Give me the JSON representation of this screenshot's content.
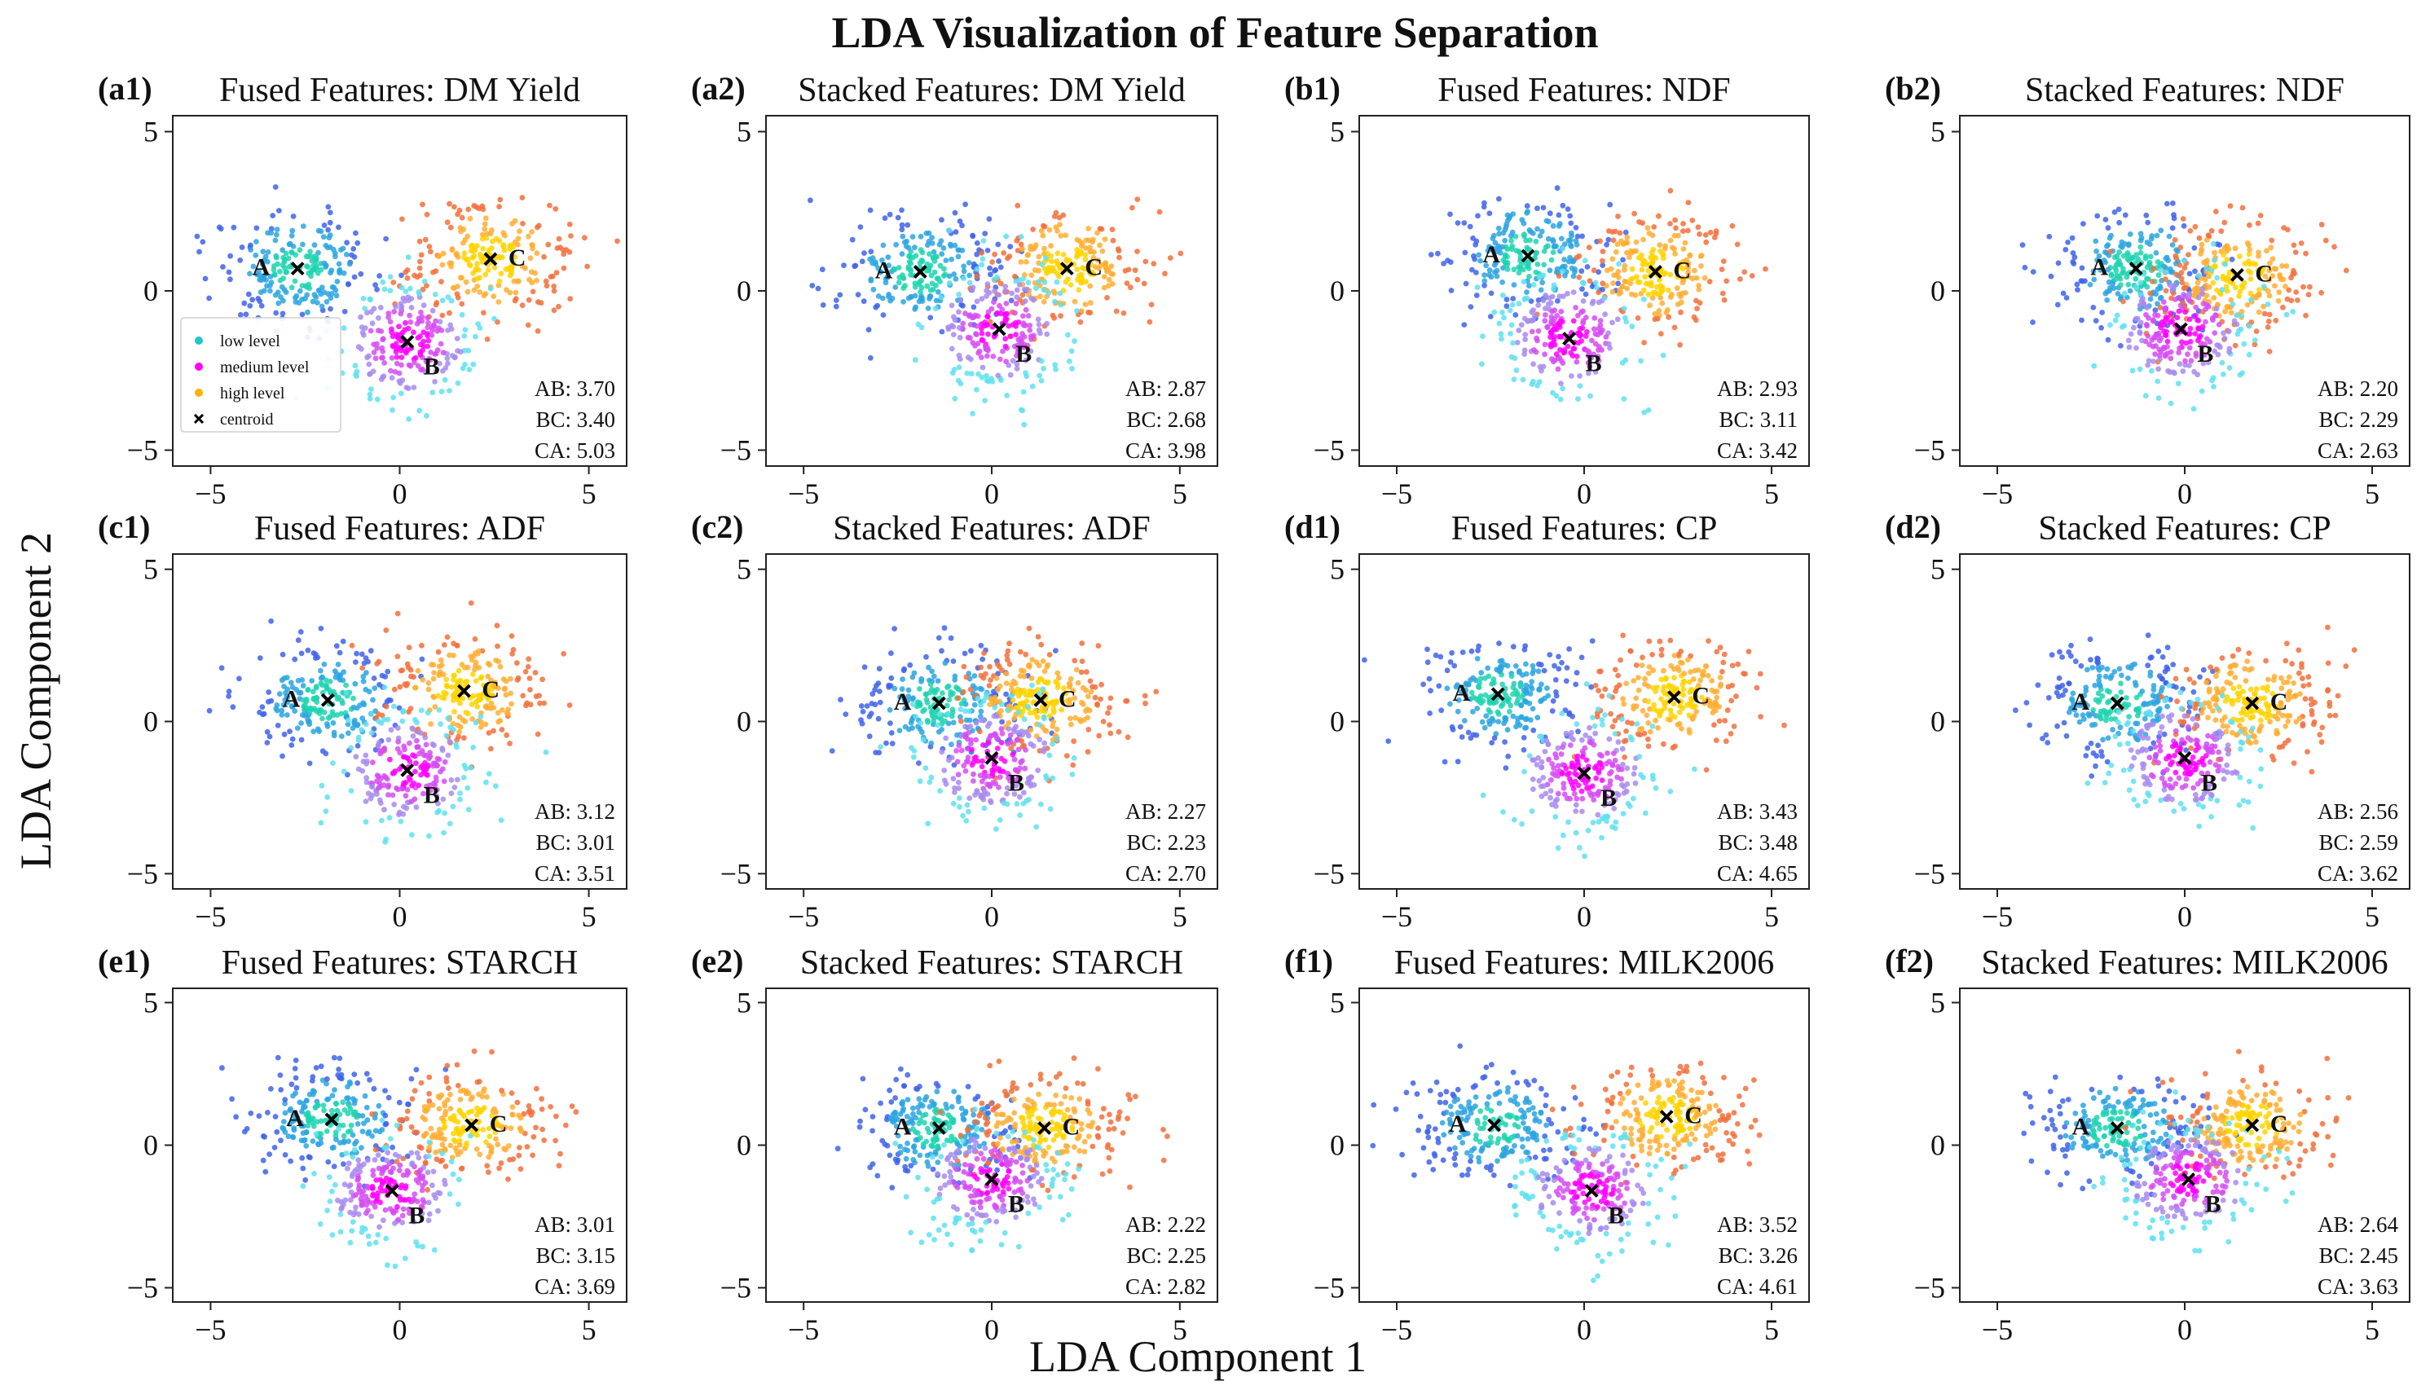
{
  "figure": {
    "title": "LDA Visualization of Feature Separation",
    "xlabel": "LDA Component 1",
    "ylabel": "LDA Component 2"
  },
  "legend": {
    "items": [
      {
        "label": "low level",
        "color": "#1fc8c8",
        "marker": "dot"
      },
      {
        "label": "medium level",
        "color": "#ff00ff",
        "marker": "dot"
      },
      {
        "label": "high level",
        "color": "#ffb000",
        "marker": "dot"
      },
      {
        "label": "centroid",
        "color": "#000000",
        "marker": "x"
      }
    ]
  },
  "chart_data": [
    {
      "type": "scatter",
      "label": "(a1)",
      "title": "Fused Features: DM Yield",
      "xlim": [
        -6,
        6
      ],
      "ylim": [
        -5.5,
        5.5
      ],
      "xticks": [
        -5,
        0,
        5
      ],
      "yticks": [
        5,
        0,
        -5
      ],
      "centroids": {
        "A": [
          -2.7,
          0.7
        ],
        "B": [
          0.2,
          -1.6
        ],
        "C": [
          2.4,
          1.0
        ]
      },
      "distances": {
        "AB": "3.70",
        "BC": "3.40",
        "CA": "5.03"
      },
      "legend": true
    },
    {
      "type": "scatter",
      "label": "(a2)",
      "title": "Stacked Features: DM Yield",
      "xlim": [
        -6,
        6
      ],
      "ylim": [
        -5.5,
        5.5
      ],
      "xticks": [
        -5,
        0,
        5
      ],
      "yticks": [
        5,
        0,
        -5
      ],
      "centroids": {
        "A": [
          -1.9,
          0.6
        ],
        "B": [
          0.2,
          -1.2
        ],
        "C": [
          2.0,
          0.7
        ]
      },
      "distances": {
        "AB": "2.87",
        "BC": "2.68",
        "CA": "3.98"
      }
    },
    {
      "type": "scatter",
      "label": "(b1)",
      "title": "Fused Features: NDF",
      "xlim": [
        -6,
        6
      ],
      "ylim": [
        -5.5,
        5.5
      ],
      "xticks": [
        -5,
        0,
        5
      ],
      "yticks": [
        5,
        0,
        -5
      ],
      "centroids": {
        "A": [
          -1.5,
          1.1
        ],
        "B": [
          -0.4,
          -1.5
        ],
        "C": [
          1.9,
          0.6
        ]
      },
      "distances": {
        "AB": "2.93",
        "BC": "3.11",
        "CA": "3.42"
      }
    },
    {
      "type": "scatter",
      "label": "(b2)",
      "title": "Stacked Features: NDF",
      "xlim": [
        -6,
        6
      ],
      "ylim": [
        -5.5,
        5.5
      ],
      "xticks": [
        -5,
        0,
        5
      ],
      "yticks": [
        5,
        0,
        -5
      ],
      "centroids": {
        "A": [
          -1.3,
          0.7
        ],
        "B": [
          -0.1,
          -1.2
        ],
        "C": [
          1.4,
          0.5
        ]
      },
      "distances": {
        "AB": "2.20",
        "BC": "2.29",
        "CA": "2.63"
      }
    },
    {
      "type": "scatter",
      "label": "(c1)",
      "title": "Fused Features: ADF",
      "xlim": [
        -6,
        6
      ],
      "ylim": [
        -5.5,
        5.5
      ],
      "xticks": [
        -5,
        0,
        5
      ],
      "yticks": [
        5,
        0,
        -5
      ],
      "centroids": {
        "A": [
          -1.9,
          0.7
        ],
        "B": [
          0.2,
          -1.6
        ],
        "C": [
          1.7,
          1.0
        ]
      },
      "distances": {
        "AB": "3.12",
        "BC": "3.01",
        "CA": "3.51"
      }
    },
    {
      "type": "scatter",
      "label": "(c2)",
      "title": "Stacked Features: ADF",
      "xlim": [
        -6,
        6
      ],
      "ylim": [
        -5.5,
        5.5
      ],
      "xticks": [
        -5,
        0,
        5
      ],
      "yticks": [
        5,
        0,
        -5
      ],
      "centroids": {
        "A": [
          -1.4,
          0.6
        ],
        "B": [
          0.0,
          -1.2
        ],
        "C": [
          1.3,
          0.7
        ]
      },
      "distances": {
        "AB": "2.27",
        "BC": "2.23",
        "CA": "2.70"
      }
    },
    {
      "type": "scatter",
      "label": "(d1)",
      "title": "Fused Features: CP",
      "xlim": [
        -6,
        6
      ],
      "ylim": [
        -5.5,
        5.5
      ],
      "xticks": [
        -5,
        0,
        5
      ],
      "yticks": [
        5,
        0,
        -5
      ],
      "centroids": {
        "A": [
          -2.3,
          0.9
        ],
        "B": [
          0.0,
          -1.7
        ],
        "C": [
          2.4,
          0.8
        ]
      },
      "distances": {
        "AB": "3.43",
        "BC": "3.48",
        "CA": "4.65"
      }
    },
    {
      "type": "scatter",
      "label": "(d2)",
      "title": "Stacked Features: CP",
      "xlim": [
        -6,
        6
      ],
      "ylim": [
        -5.5,
        5.5
      ],
      "xticks": [
        -5,
        0,
        5
      ],
      "yticks": [
        5,
        0,
        -5
      ],
      "centroids": {
        "A": [
          -1.8,
          0.6
        ],
        "B": [
          0.0,
          -1.2
        ],
        "C": [
          1.8,
          0.6
        ]
      },
      "distances": {
        "AB": "2.56",
        "BC": "2.59",
        "CA": "3.62"
      }
    },
    {
      "type": "scatter",
      "label": "(e1)",
      "title": "Fused Features: STARCH",
      "xlim": [
        -6,
        6
      ],
      "ylim": [
        -5.5,
        5.5
      ],
      "xticks": [
        -5,
        0,
        5
      ],
      "yticks": [
        5,
        0,
        -5
      ],
      "centroids": {
        "A": [
          -1.8,
          0.9
        ],
        "B": [
          -0.2,
          -1.6
        ],
        "C": [
          1.9,
          0.7
        ]
      },
      "distances": {
        "AB": "3.01",
        "BC": "3.15",
        "CA": "3.69"
      }
    },
    {
      "type": "scatter",
      "label": "(e2)",
      "title": "Stacked Features: STARCH",
      "xlim": [
        -6,
        6
      ],
      "ylim": [
        -5.5,
        5.5
      ],
      "xticks": [
        -5,
        0,
        5
      ],
      "yticks": [
        5,
        0,
        -5
      ],
      "centroids": {
        "A": [
          -1.4,
          0.6
        ],
        "B": [
          0.0,
          -1.2
        ],
        "C": [
          1.4,
          0.6
        ]
      },
      "distances": {
        "AB": "2.22",
        "BC": "2.25",
        "CA": "2.82"
      }
    },
    {
      "type": "scatter",
      "label": "(f1)",
      "title": "Fused Features: MILK2006",
      "xlim": [
        -6,
        6
      ],
      "ylim": [
        -5.5,
        5.5
      ],
      "xticks": [
        -5,
        0,
        5
      ],
      "yticks": [
        5,
        0,
        -5
      ],
      "centroids": {
        "A": [
          -2.4,
          0.7
        ],
        "B": [
          0.2,
          -1.6
        ],
        "C": [
          2.2,
          1.0
        ]
      },
      "distances": {
        "AB": "3.52",
        "BC": "3.26",
        "CA": "4.61"
      }
    },
    {
      "type": "scatter",
      "label": "(f2)",
      "title": "Stacked Features: MILK2006",
      "xlim": [
        -6,
        6
      ],
      "ylim": [
        -5.5,
        5.5
      ],
      "xticks": [
        -5,
        0,
        5
      ],
      "yticks": [
        5,
        0,
        -5
      ],
      "centroids": {
        "A": [
          -1.8,
          0.6
        ],
        "B": [
          0.1,
          -1.2
        ],
        "C": [
          1.8,
          0.7
        ]
      },
      "distances": {
        "AB": "2.64",
        "BC": "2.45",
        "CA": "3.63"
      }
    }
  ]
}
